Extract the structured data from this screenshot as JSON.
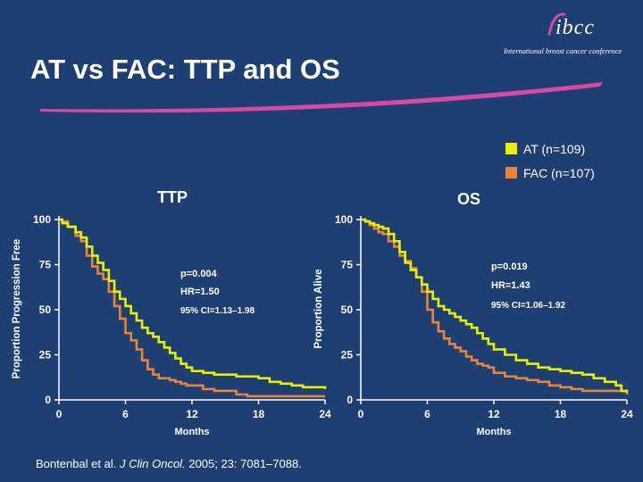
{
  "slide": {
    "title": "AT vs FAC: TTP and OS",
    "logo_mark": "ibcc",
    "logo_subtitle": "International breast cancer conference",
    "citation_prefix": "Bontenbal et al.",
    "citation_journal": "J Clin Oncol.",
    "citation_suffix": "2005; 23: 7081–7088."
  },
  "colors": {
    "background": "#1e3f72",
    "at": "#e8f000",
    "fac": "#e8853a",
    "swoosh": "#d64aa6"
  },
  "legend": [
    {
      "label": "AT (n=109)",
      "color": "#e8f000"
    },
    {
      "label": "FAC (n=107)",
      "color": "#e8853a"
    }
  ],
  "chart_data": [
    {
      "type": "line",
      "title": "TTP",
      "xlabel": "Months",
      "ylabel": "Proportion Progression Free",
      "xlim": [
        0,
        24
      ],
      "ylim": [
        0,
        100
      ],
      "xticks": [
        "0",
        "6",
        "12",
        "18",
        "24"
      ],
      "yticks": [
        "0",
        "25",
        "50",
        "75",
        "100"
      ],
      "step": true,
      "annotations": [
        "p=0.004",
        "HR=1.50",
        "95% CI=1.13–1.98"
      ],
      "series": [
        {
          "name": "AT (n=109)",
          "color": "#e8f000",
          "x": [
            0,
            0.3,
            0.8,
            1.5,
            2.0,
            2.5,
            3.0,
            3.5,
            4.0,
            4.5,
            5.0,
            5.5,
            6.0,
            6.5,
            7.0,
            7.5,
            8.0,
            8.5,
            9.0,
            9.5,
            10.0,
            10.5,
            11.0,
            11.5,
            12.0,
            13.0,
            14.0,
            15.0,
            16.0,
            17.0,
            18.0,
            19.0,
            20.0,
            21.0,
            22.0,
            23.0,
            24.0
          ],
          "y": [
            100,
            98,
            96,
            93,
            90,
            85,
            80,
            76,
            72,
            66,
            60,
            56,
            52,
            48,
            44,
            40,
            37,
            35,
            32,
            29,
            26,
            23,
            20,
            18,
            16,
            15,
            14,
            14,
            13,
            13,
            12,
            10,
            9,
            8,
            7,
            7,
            6
          ]
        },
        {
          "name": "FAC (n=107)",
          "color": "#e8853a",
          "x": [
            0,
            0.3,
            0.8,
            1.5,
            2.0,
            2.5,
            3.0,
            3.5,
            4.0,
            4.5,
            5.0,
            5.5,
            6.0,
            6.5,
            7.0,
            7.5,
            8.0,
            8.5,
            9.0,
            9.5,
            10.0,
            10.5,
            11.0,
            11.5,
            12.0,
            13.0,
            14.0,
            15.0,
            16.0,
            17.0,
            18.0,
            19.0,
            20.0,
            21.0,
            22.0,
            23.0,
            24.0
          ],
          "y": [
            100,
            99,
            96,
            91,
            88,
            80,
            74,
            70,
            67,
            60,
            52,
            45,
            37,
            33,
            28,
            22,
            17,
            14,
            12,
            12,
            11,
            10,
            9,
            8,
            8,
            6,
            5,
            5,
            3,
            2,
            2,
            2,
            2,
            2,
            2,
            2,
            2
          ]
        }
      ]
    },
    {
      "type": "line",
      "title": "OS",
      "xlabel": "Months",
      "ylabel": "Proportion Alive",
      "xlim": [
        0,
        24
      ],
      "ylim": [
        0,
        100
      ],
      "xticks": [
        "0",
        "6",
        "12",
        "18",
        "24"
      ],
      "yticks": [
        "0",
        "25",
        "50",
        "75",
        "100"
      ],
      "step": true,
      "annotations": [
        "p=0.019",
        "HR=1.43",
        "95% CI=1.06–1.92"
      ],
      "series": [
        {
          "name": "AT (n=109)",
          "color": "#e8f000",
          "x": [
            0,
            0.4,
            0.8,
            1.2,
            1.6,
            2.0,
            2.5,
            3.0,
            3.5,
            4.0,
            4.5,
            5.0,
            5.5,
            6.0,
            6.5,
            7.0,
            7.5,
            8.0,
            8.5,
            9.0,
            9.5,
            10.0,
            10.5,
            11.0,
            11.5,
            12.0,
            13.0,
            14.0,
            15.0,
            16.0,
            17.0,
            18.0,
            19.0,
            20.0,
            21.0,
            22.0,
            23.0,
            23.5,
            24.0
          ],
          "y": [
            100,
            99,
            98,
            97,
            96,
            95,
            92,
            88,
            82,
            76,
            72,
            68,
            64,
            60,
            56,
            52,
            50,
            48,
            46,
            44,
            42,
            40,
            37,
            34,
            31,
            28,
            25,
            22,
            20,
            18,
            17,
            16,
            15,
            14,
            12,
            10,
            8,
            5,
            4
          ]
        },
        {
          "name": "FAC (n=107)",
          "color": "#e8853a",
          "x": [
            0,
            0.4,
            0.8,
            1.2,
            1.6,
            2.0,
            2.5,
            3.0,
            3.5,
            4.0,
            4.5,
            5.0,
            5.5,
            6.0,
            6.5,
            7.0,
            7.5,
            8.0,
            8.5,
            9.0,
            9.5,
            10.0,
            10.5,
            11.0,
            11.5,
            12.0,
            13.0,
            14.0,
            15.0,
            16.0,
            17.0,
            18.0,
            19.0,
            20.0,
            21.0,
            22.0,
            23.0,
            24.0
          ],
          "y": [
            100,
            99,
            97,
            95,
            93,
            92,
            88,
            85,
            80,
            77,
            73,
            68,
            60,
            50,
            43,
            38,
            34,
            31,
            29,
            27,
            24,
            22,
            20,
            19,
            18,
            15,
            13,
            12,
            11,
            10,
            8,
            7,
            6,
            5,
            5,
            5,
            5,
            3
          ]
        }
      ]
    }
  ]
}
